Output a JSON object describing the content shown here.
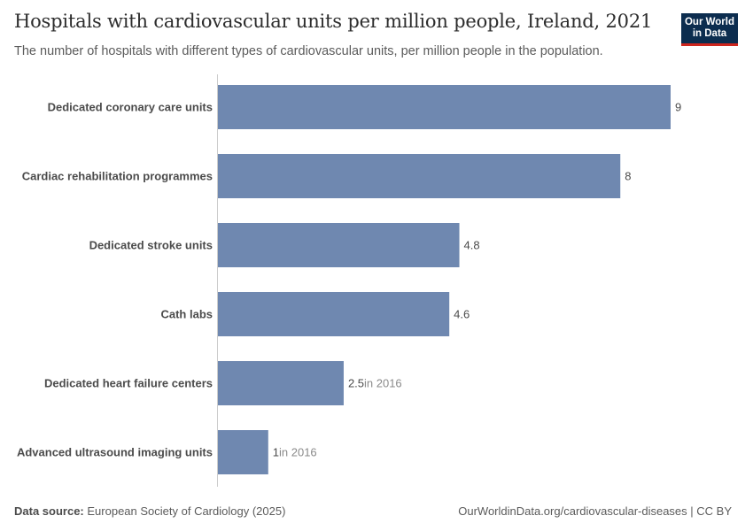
{
  "title": "Hospitals with cardiovascular units per million people, Ireland, 2021",
  "subtitle": "The number of hospitals with different types of cardiovascular units, per million people in the population.",
  "logo": {
    "line1": "Our World",
    "line2": "in Data"
  },
  "footer": {
    "source_label": "Data source:",
    "source_text": "European Society of Cardiology (2025)",
    "url_text": "OurWorldinData.org/cardiovascular-diseases | CC BY"
  },
  "colors": {
    "bar": "#6f88b0",
    "axis": "#cccccc"
  },
  "chart_data": {
    "type": "bar",
    "orientation": "horizontal",
    "xlim": [
      0,
      9
    ],
    "categories": [
      "Dedicated coronary care units",
      "Cardiac rehabilitation programmes",
      "Dedicated stroke units",
      "Cath labs",
      "Dedicated heart failure centers",
      "Advanced ultrasound imaging units"
    ],
    "values": [
      9,
      8,
      4.8,
      4.6,
      2.5,
      1
    ],
    "value_labels": [
      "9",
      "8",
      "4.8",
      "4.6",
      "2.5",
      "1"
    ],
    "notes": [
      "",
      "",
      "",
      "",
      "in 2016",
      "in 2016"
    ]
  }
}
